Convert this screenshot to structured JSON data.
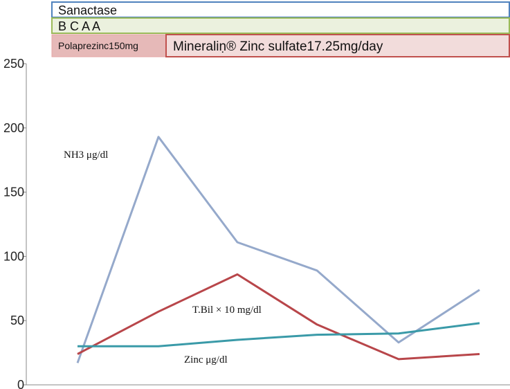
{
  "treatments": [
    {
      "label": "Sanactase",
      "stroke": "#4f81bd",
      "fill": "#ffffff"
    },
    {
      "label": "B C A A",
      "stroke": "#9bbb59",
      "fill": "#ebf1de"
    },
    {
      "label": "Polaprezinc150mg",
      "stroke": "#e6a5a5",
      "fill": "#e6b9b8"
    },
    {
      "label": "Mineraliṇ® Zinc sulfate17.25mg/day",
      "stroke": "#c0504d",
      "fill": "#f2dcdb"
    }
  ],
  "chart_data": {
    "type": "line",
    "ylim": [
      0,
      250
    ],
    "yticks": [
      "0",
      "50",
      "100",
      "150",
      "200",
      "250"
    ],
    "x": [
      1,
      2,
      3,
      4,
      5,
      6
    ],
    "series": [
      {
        "name": "NH3  μg/dl",
        "color": "#95a9cb",
        "values": [
          17,
          193,
          111,
          89,
          33,
          74
        ]
      },
      {
        "name": "T.Bil × 10  mg/dl",
        "color": "#b8464a",
        "values": [
          24,
          57,
          86,
          47,
          20,
          24
        ]
      },
      {
        "name": "Zinc μg/dl",
        "color": "#3a9aa8",
        "values": [
          30,
          30,
          35,
          39,
          40,
          48
        ]
      }
    ]
  }
}
